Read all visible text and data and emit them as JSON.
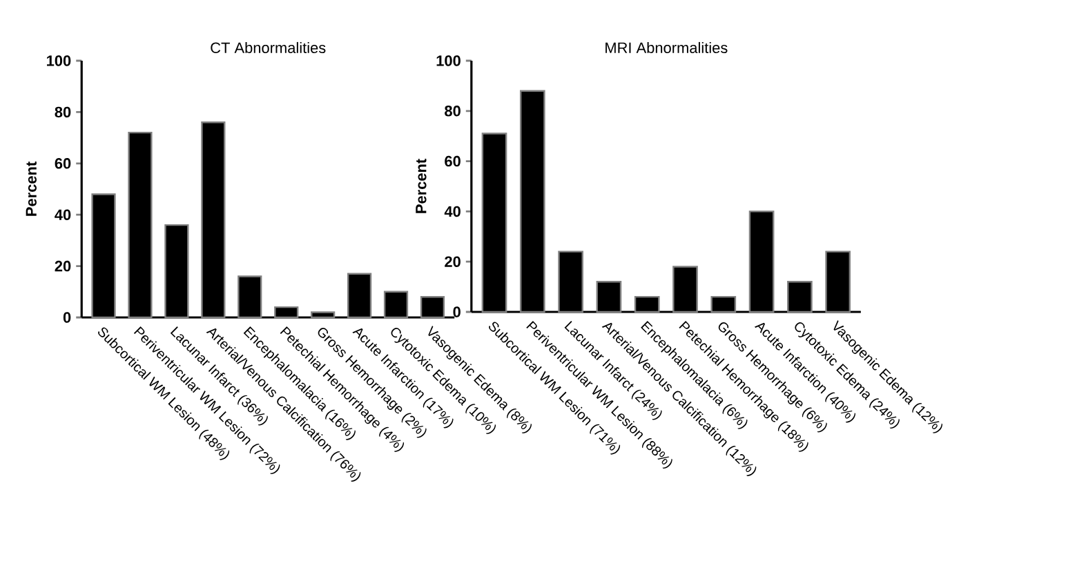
{
  "chart_data": [
    {
      "type": "bar",
      "title": "CT Abnormalities",
      "ylabel": "Percent",
      "categories": [
        "Subcortical WM Lesion (48%)",
        "Periventricular WM Lesion (72%)",
        "Lacunar Infarct (36%)",
        "Arterial/Venous Calcification (76%)",
        "Encephalomalacia (16%)",
        "Petechial Hemorrhage (4%)",
        "Gross Hemorrhage (2%)",
        "Acute Infarction (17%)",
        "Cytotoxic Edema (10%)",
        "Vasogenic Edema (8%)"
      ],
      "values": [
        48,
        72,
        36,
        76,
        16,
        4,
        2,
        17,
        10,
        8
      ],
      "color": "#000000",
      "ylim": [
        0,
        100
      ],
      "yticks": [
        0,
        20,
        40,
        60,
        80,
        100
      ],
      "grid": false
    },
    {
      "type": "bar",
      "title": "MRI Abnormalities",
      "ylabel": "Percent",
      "categories": [
        "Subcortical WM Lesion (71%)",
        "Periventricular WM Lesion (88%)",
        "Lacunar Infarct (24%)",
        "Arterial/Venous Calcification (12%)",
        "Encephalomalacia (6%)",
        "Petechial Hemorrhage (18%)",
        "Gross Hemorrhage (6%)",
        "Acute Infarction (40%)",
        "Cytotoxic Edema (24%)",
        "Vasogenic Edema (12%)"
      ],
      "values": [
        71,
        88,
        24,
        12,
        6,
        18,
        6,
        40,
        12,
        24
      ],
      "color": "#000000",
      "ylim": [
        0,
        100
      ],
      "yticks": [
        0,
        20,
        40,
        60,
        80,
        100
      ],
      "grid": false
    }
  ]
}
